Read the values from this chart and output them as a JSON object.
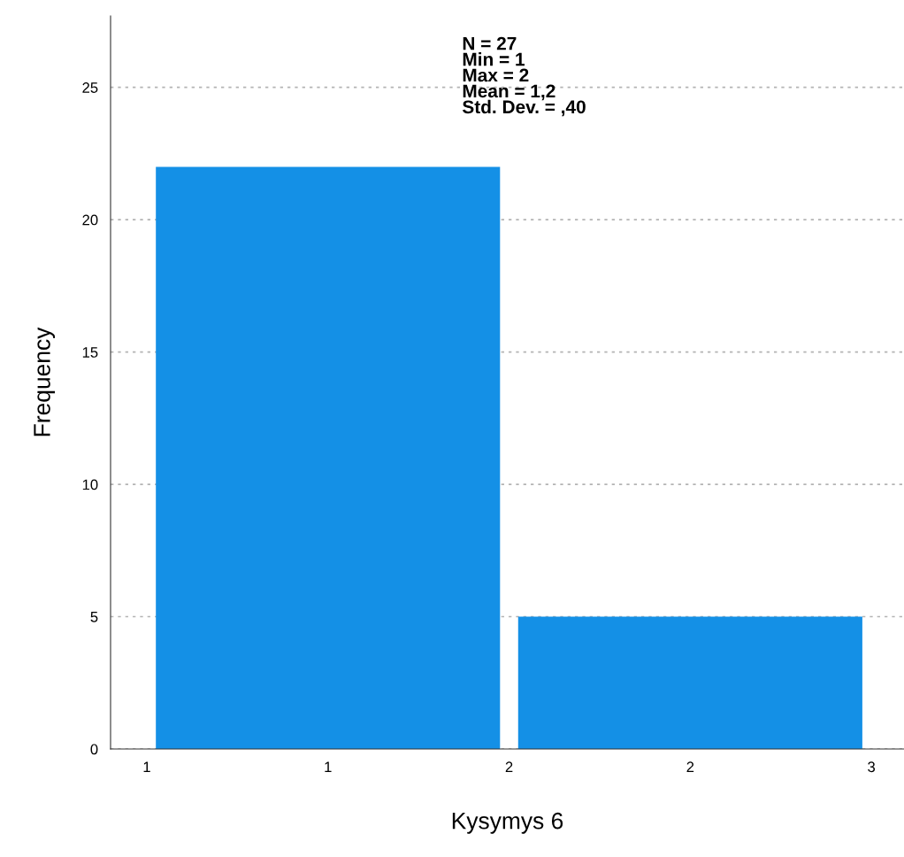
{
  "chart_data": {
    "type": "histogram",
    "xlabel": "Kysymys 6",
    "ylabel": "Frequency",
    "bins": [
      1,
      2,
      3
    ],
    "values": [
      22,
      5
    ],
    "color": "#1490e6",
    "xlim": [
      0.9,
      3.09
    ],
    "ylim": [
      0,
      27.7
    ],
    "xticks": [
      {
        "value": 1,
        "label": "1"
      },
      {
        "value": 1.5,
        "label": "1"
      },
      {
        "value": 2,
        "label": "2"
      },
      {
        "value": 2.5,
        "label": "2"
      },
      {
        "value": 3,
        "label": "3"
      }
    ],
    "yticks": [
      0,
      5,
      10,
      15,
      20,
      25
    ],
    "grid": "y",
    "annotations": [
      "N = 27\nMin = 1\nMax = 2\nMean = 1,2\nStd. Dev. = ,40"
    ]
  }
}
